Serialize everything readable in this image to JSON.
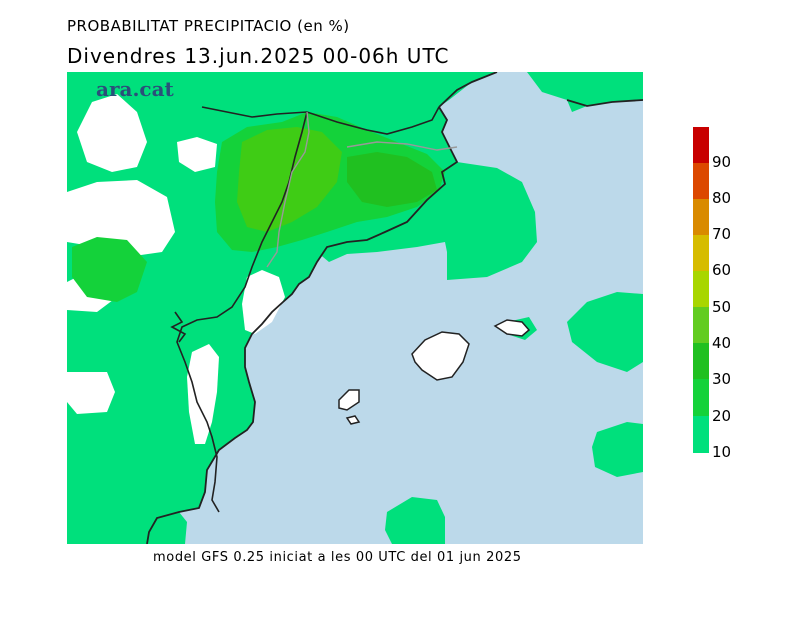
{
  "header": {
    "title": "PROBABILITAT PRECIPITACIO (en %)",
    "subtitle": "Divendres  13.jun.2025 00-06h UTC"
  },
  "logo": {
    "text": "ara.cat",
    "color": "#2b4f7a"
  },
  "footer": {
    "model_info": "model GFS 0.25 iniciat a les 00 UTC del 01 jun 2025"
  },
  "map": {
    "sea_color": "#bcd9ea",
    "no_precip_color": "#ffffff",
    "border_color": "#222222",
    "inner_border_color": "#9a9a9a",
    "regions": "Catalonia, NE Spain, Balearic Islands"
  },
  "legend": {
    "labels": [
      "90",
      "80",
      "70",
      "60",
      "50",
      "40",
      "30",
      "20",
      "10"
    ],
    "colors": [
      {
        "level": "90",
        "color": "#c80000"
      },
      {
        "level": "80",
        "color": "#dc4800"
      },
      {
        "level": "70",
        "color": "#d98a00"
      },
      {
        "level": "60",
        "color": "#d6bc00"
      },
      {
        "level": "50",
        "color": "#a8d600"
      },
      {
        "level": "40",
        "color": "#62cc20"
      },
      {
        "level": "30",
        "color": "#20c020"
      },
      {
        "level": "20",
        "color": "#14d23a"
      },
      {
        "level": "10",
        "color": "#00e07c"
      }
    ]
  }
}
